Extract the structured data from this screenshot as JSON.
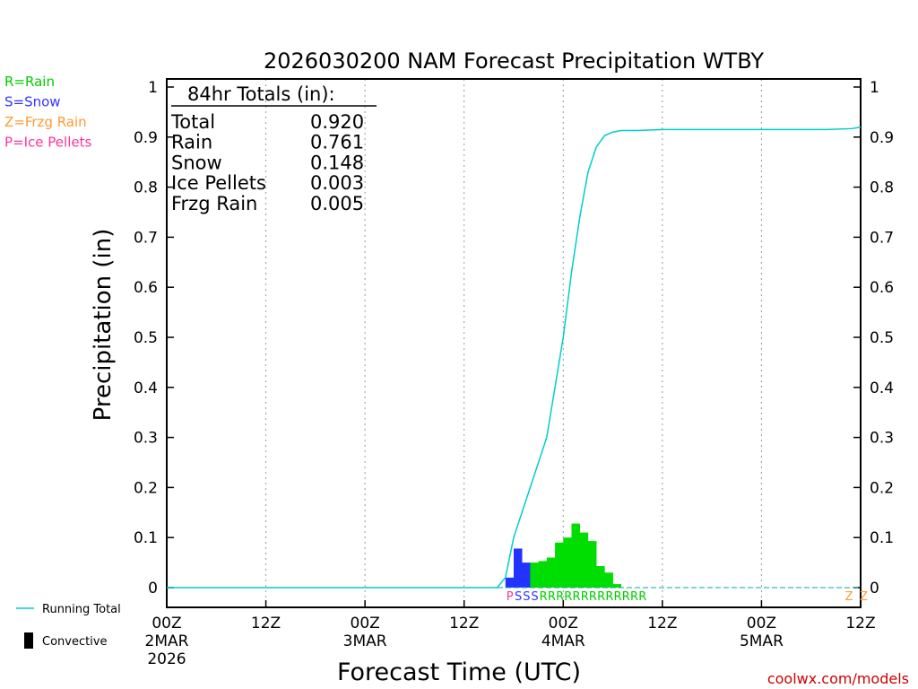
{
  "chart_data": {
    "type": "bar",
    "title": "2026030200 NAM Forecast Precipitation WTBY",
    "xlabel": "Forecast Time (UTC)",
    "ylabel": "Precipitation (in)",
    "ylim": [
      0,
      1
    ],
    "xlim_hours": [
      0,
      84
    ],
    "y_ticks": [
      "0",
      "0.1",
      "0.2",
      "0.3",
      "0.4",
      "0.5",
      "0.6",
      "0.7",
      "0.8",
      "0.9",
      "1"
    ],
    "x_ticks": [
      {
        "hour": 0,
        "line1": "00Z",
        "line2": "2MAR",
        "line3": "2026"
      },
      {
        "hour": 12,
        "line1": "12Z",
        "line2": "",
        "line3": ""
      },
      {
        "hour": 24,
        "line1": "00Z",
        "line2": "3MAR",
        "line3": ""
      },
      {
        "hour": 36,
        "line1": "12Z",
        "line2": "",
        "line3": ""
      },
      {
        "hour": 48,
        "line1": "00Z",
        "line2": "4MAR",
        "line3": ""
      },
      {
        "hour": 60,
        "line1": "12Z",
        "line2": "",
        "line3": ""
      },
      {
        "hour": 72,
        "line1": "00Z",
        "line2": "5MAR",
        "line3": ""
      },
      {
        "hour": 84,
        "line1": "12Z",
        "line2": "",
        "line3": ""
      }
    ],
    "legend_types": [
      {
        "label": "R=Rain",
        "color": "#00cc00"
      },
      {
        "label": "S=Snow",
        "color": "#3333ff"
      },
      {
        "label": "Z=Frzg Rain",
        "color": "#ff9933"
      },
      {
        "label": "P=Ice Pellets",
        "color": "#ff3399"
      }
    ],
    "legend_lines": [
      {
        "label": "Running Total",
        "color": "#00cccc"
      },
      {
        "label": "Convective",
        "color": "#000000"
      }
    ],
    "totals_header": "84hr Totals (in):",
    "totals": [
      {
        "label": "Total",
        "value": "0.920"
      },
      {
        "label": "Rain",
        "value": "0.761"
      },
      {
        "label": "Snow",
        "value": "0.148"
      },
      {
        "label": "Ice Pellets",
        "value": "0.003"
      },
      {
        "label": "Frzg Rain",
        "value": "0.005"
      }
    ],
    "series": [
      {
        "name": "hourly precipitation",
        "bar_width_hours": 1,
        "bars": [
          {
            "hour": 41,
            "value": 0.02,
            "type": "S"
          },
          {
            "hour": 42,
            "value": 0.078,
            "type": "S"
          },
          {
            "hour": 43,
            "value": 0.05,
            "type": "S"
          },
          {
            "hour": 44,
            "value": 0.05,
            "type": "R"
          },
          {
            "hour": 45,
            "value": 0.053,
            "type": "R"
          },
          {
            "hour": 46,
            "value": 0.06,
            "type": "R"
          },
          {
            "hour": 47,
            "value": 0.09,
            "type": "R"
          },
          {
            "hour": 48,
            "value": 0.1,
            "type": "R"
          },
          {
            "hour": 49,
            "value": 0.128,
            "type": "R"
          },
          {
            "hour": 50,
            "value": 0.11,
            "type": "R"
          },
          {
            "hour": 51,
            "value": 0.093,
            "type": "R"
          },
          {
            "hour": 52,
            "value": 0.043,
            "type": "R"
          },
          {
            "hour": 53,
            "value": 0.03,
            "type": "R"
          },
          {
            "hour": 54,
            "value": 0.007,
            "type": "R"
          }
        ]
      },
      {
        "name": "Running Total",
        "x": [
          0,
          40,
          41,
          42,
          43,
          44,
          45,
          46,
          47,
          48,
          49,
          50,
          51,
          52,
          53,
          54,
          55,
          57,
          60,
          72,
          80,
          83,
          84
        ],
        "y": [
          0,
          0,
          0.02,
          0.1,
          0.15,
          0.2,
          0.25,
          0.3,
          0.4,
          0.5,
          0.63,
          0.74,
          0.83,
          0.88,
          0.903,
          0.91,
          0.913,
          0.913,
          0.915,
          0.915,
          0.915,
          0.917,
          0.92
        ]
      }
    ],
    "type_strip": [
      {
        "hour": 41,
        "letter": "P",
        "color": "#ff3399"
      },
      {
        "hour": 42,
        "letter": "S",
        "color": "#3333ff"
      },
      {
        "hour": 43,
        "letter": "S",
        "color": "#3333ff"
      },
      {
        "hour": 44,
        "letter": "S",
        "color": "#3333ff"
      },
      {
        "hour": 45,
        "letter": "R",
        "color": "#00cc00"
      },
      {
        "hour": 46,
        "letter": "R",
        "color": "#00cc00"
      },
      {
        "hour": 47,
        "letter": "R",
        "color": "#00cc00"
      },
      {
        "hour": 48,
        "letter": "R",
        "color": "#00cc00"
      },
      {
        "hour": 49,
        "letter": "R",
        "color": "#00cc00"
      },
      {
        "hour": 50,
        "letter": "R",
        "color": "#00cc00"
      },
      {
        "hour": 51,
        "letter": "R",
        "color": "#00cc00"
      },
      {
        "hour": 52,
        "letter": "R",
        "color": "#00cc00"
      },
      {
        "hour": 53,
        "letter": "R",
        "color": "#00cc00"
      },
      {
        "hour": 54,
        "letter": "R",
        "color": "#00cc00"
      },
      {
        "hour": 55,
        "letter": "R",
        "color": "#00cc00"
      },
      {
        "hour": 56,
        "letter": "R",
        "color": "#00cc00"
      },
      {
        "hour": 57,
        "letter": "R",
        "color": "#00cc00"
      },
      {
        "hour": 82,
        "letter": "Z",
        "color": "#ff9933"
      },
      {
        "hour": 83.8,
        "letter": "Z",
        "color": "#ff9933"
      }
    ],
    "colors": {
      "rain": "#00dd00",
      "snow": "#2233ff",
      "total_line": "#00cccc"
    },
    "credit": "coolwx.com/models"
  }
}
